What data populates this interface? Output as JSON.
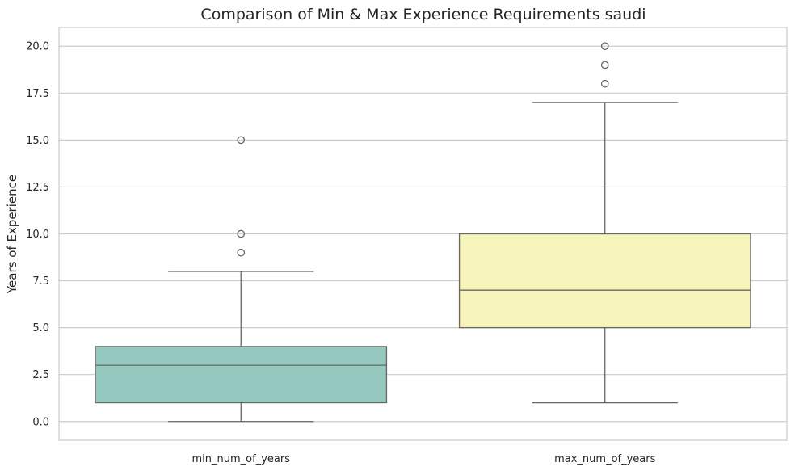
{
  "chart_data": {
    "type": "boxplot",
    "title": "Comparison of Min & Max Experience Requirements saudi",
    "xlabel": "",
    "ylabel": "Years of Experience",
    "ylim": [
      -1,
      21
    ],
    "yticks": [
      0.0,
      2.5,
      5.0,
      7.5,
      10.0,
      12.5,
      15.0,
      17.5,
      20.0
    ],
    "ytick_labels": [
      "0.0",
      "2.5",
      "5.0",
      "7.5",
      "10.0",
      "12.5",
      "15.0",
      "17.5",
      "20.0"
    ],
    "grid": true,
    "categories": [
      "min_num_of_years",
      "max_num_of_years"
    ],
    "boxes": [
      {
        "category": "min_num_of_years",
        "whisker_low": 0,
        "q1": 1,
        "median": 3,
        "q3": 4,
        "whisker_high": 8,
        "outliers": [
          9,
          10,
          15
        ],
        "color": "#95c9c0"
      },
      {
        "category": "max_num_of_years",
        "whisker_low": 1,
        "q1": 5,
        "median": 7,
        "q3": 10,
        "whisker_high": 17,
        "outliers": [
          18,
          19,
          20
        ],
        "color": "#f7f5bb"
      }
    ],
    "colors": {
      "grid": "#cccccc",
      "frame": "#cccccc",
      "line": "#666666"
    }
  }
}
